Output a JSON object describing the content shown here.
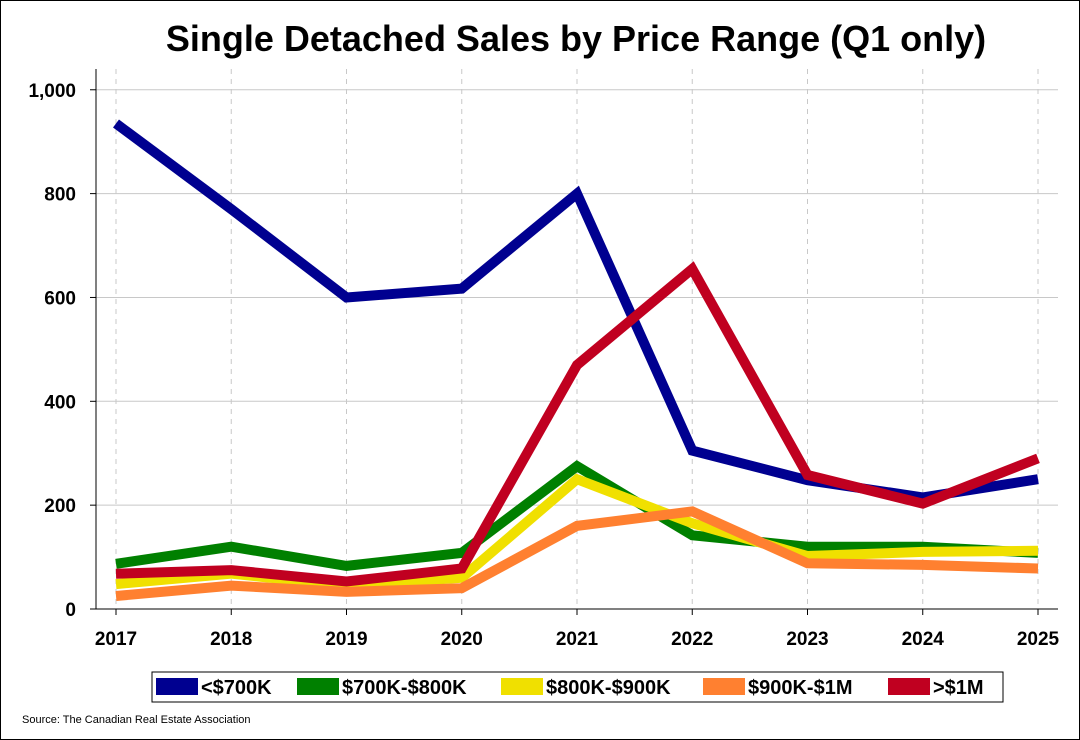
{
  "chart_data": {
    "type": "line",
    "title": "Single Detached Sales by Price Range (Q1 only)",
    "xlabel": "",
    "ylabel": "",
    "categories": [
      "2017",
      "2018",
      "2019",
      "2020",
      "2021",
      "2022",
      "2023",
      "2024",
      "2025"
    ],
    "ylim": [
      0,
      1040
    ],
    "yticks": [
      0,
      200,
      400,
      600,
      800,
      1000
    ],
    "ytick_labels": [
      "0",
      "200",
      "400",
      "600",
      "800",
      "1,000"
    ],
    "grid": true,
    "legend_position": "bottom",
    "series": [
      {
        "name": "<$700K",
        "color": "#000090",
        "values": [
          935,
          770,
          600,
          617,
          800,
          305,
          248,
          215,
          250
        ]
      },
      {
        "name": "$700K-$800K",
        "color": "#008000",
        "values": [
          87,
          120,
          83,
          108,
          275,
          142,
          120,
          120,
          108
        ]
      },
      {
        "name": "$800K-$900K",
        "color": "#f0e000",
        "values": [
          48,
          68,
          45,
          60,
          250,
          165,
          102,
          110,
          112
        ]
      },
      {
        "name": "$900K-$1M",
        "color": "#ff8030",
        "values": [
          25,
          45,
          33,
          40,
          160,
          188,
          88,
          85,
          78
        ]
      },
      {
        "name": ">$1M",
        "color": "#c00020",
        "values": [
          68,
          75,
          53,
          78,
          470,
          655,
          258,
          203,
          290
        ]
      }
    ],
    "source": "Source: The Canadian Real Estate Association"
  }
}
